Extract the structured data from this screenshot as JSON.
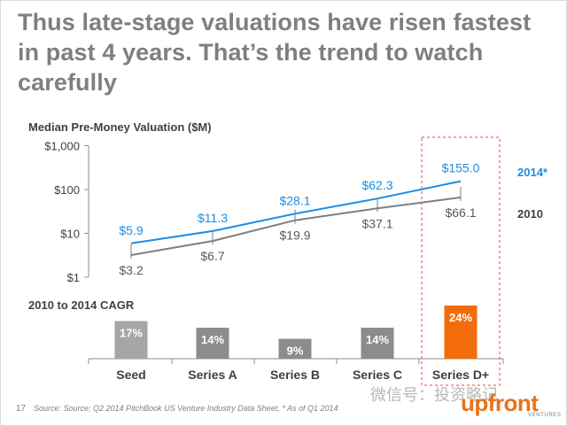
{
  "title_lines": [
    "Thus late-stage valuations have risen fastest",
    "in past 4 years. That’s the trend to watch",
    "carefully"
  ],
  "chart_data": [
    {
      "type": "line",
      "title": "Median Pre-Money Valuation ($M)",
      "yscale": "log",
      "ylim": [
        1,
        1000
      ],
      "yticks": [
        {
          "value": 1,
          "label": "$1"
        },
        {
          "value": 10,
          "label": "$10"
        },
        {
          "value": 100,
          "label": "$100"
        },
        {
          "value": 1000,
          "label": "$1,000"
        }
      ],
      "categories": [
        "Seed",
        "Series A",
        "Series B",
        "Series C",
        "Series D+"
      ],
      "series": [
        {
          "name": "2014*",
          "color": "#1b8ce3",
          "values": [
            5.9,
            11.3,
            28.1,
            62.3,
            155.0
          ],
          "labels": [
            "$5.9",
            "$11.3",
            "$28.1",
            "$62.3",
            "$155.0"
          ]
        },
        {
          "name": "2010",
          "color": "#7f7f7f",
          "values": [
            3.2,
            6.7,
            19.9,
            37.1,
            66.1
          ],
          "labels": [
            "$3.2",
            "$6.7",
            "$19.9",
            "$37.1",
            "$66.1"
          ]
        }
      ]
    },
    {
      "type": "bar",
      "title": "2010 to 2014 CAGR",
      "categories": [
        "Seed",
        "Series A",
        "Series B",
        "Series C",
        "Series D+"
      ],
      "values": [
        17,
        14,
        9,
        14,
        24
      ],
      "labels": [
        "17%",
        "14%",
        "9%",
        "14%",
        "24%"
      ],
      "ylim": [
        0,
        24
      ],
      "colors": [
        "#a6a6a6",
        "#8c8c8c",
        "#8c8c8c",
        "#8c8c8c",
        "#f26c0c"
      ],
      "highlight": "Series D+"
    }
  ],
  "footer": {
    "page_number": "17",
    "source": "Source: Source; Q2 2014 PitchBook US Venture Industry Data Sheet,   * As of Q1 2014"
  },
  "watermark": "微信号：投资略记",
  "brand": {
    "name": "upfront",
    "sub": "VENTURES"
  },
  "colors": {
    "blue": "#1b8ce3",
    "gray": "#7f7f7f",
    "orange": "#f26c0c",
    "highlight_box": "#e8473b"
  }
}
